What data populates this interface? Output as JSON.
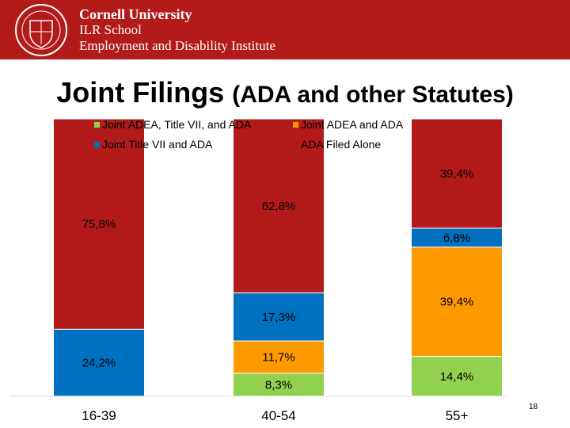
{
  "header": {
    "org_lines": [
      "Cornell University",
      "ILR School",
      "Employment and Disability Institute"
    ],
    "background_color": "#b31b1b",
    "seal_icon": "cornell-seal-icon"
  },
  "slide": {
    "title_main": "Joint Filings",
    "title_sub": "(ADA and other Statutes)",
    "page_number": "18"
  },
  "chart_data": {
    "type": "bar",
    "stacked": true,
    "categories": [
      "16-39",
      "40-54",
      "55+"
    ],
    "ylim": [
      0,
      100
    ],
    "grid": false,
    "legend_position": "top",
    "series": [
      {
        "name": "Joint ADEA, Title VII, and ADA",
        "color": "#92d050",
        "values": [
          null,
          8.3,
          null
        ],
        "labels": [
          "",
          "8,3%",
          ""
        ]
      },
      {
        "name": "Joint ADEA and ADA",
        "color": "#ff9900",
        "values": [
          null,
          11.7,
          39.4
        ],
        "labels": [
          "",
          "11,7%",
          "39,4%"
        ]
      },
      {
        "name": "Joint Title VII and ADA",
        "color": "#0070c0",
        "values": [
          24.2,
          17.3,
          6.8
        ],
        "labels": [
          "24,2%",
          "17,3%",
          "6,8%"
        ]
      },
      {
        "name": "ADA Filed Alone",
        "color": "#b31b1b",
        "values": [
          75.8,
          62.8,
          39.4
        ],
        "labels": [
          "75,8%",
          "62,8%",
          "39,4%"
        ]
      }
    ],
    "extra_bottom_segment": {
      "category_index": 2,
      "color": "#92d050",
      "value": 14.4,
      "label": "14,4%"
    }
  }
}
